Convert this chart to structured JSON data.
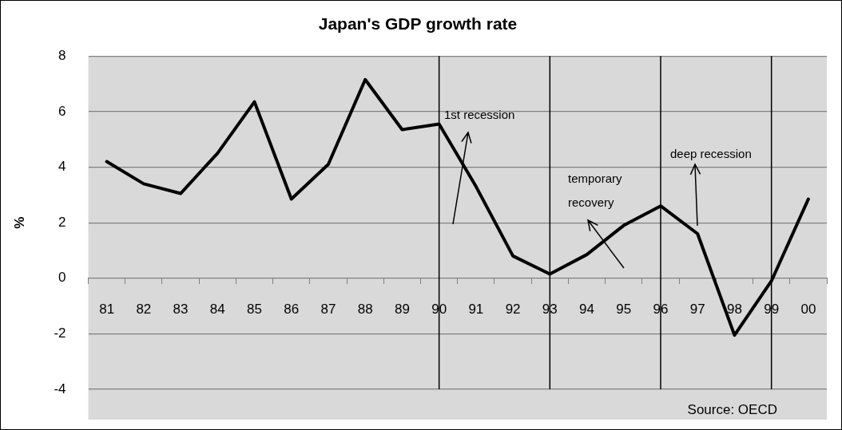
{
  "chart_data": {
    "type": "line",
    "title": "Japan's GDP growth rate",
    "ylabel": "%",
    "categories": [
      "81",
      "82",
      "83",
      "84",
      "85",
      "86",
      "87",
      "88",
      "89",
      "90",
      "91",
      "92",
      "93",
      "94",
      "95",
      "96",
      "97",
      "98",
      "99",
      "00"
    ],
    "series": [
      {
        "color": "#000000",
        "values": [
          4.2,
          3.4,
          3.05,
          4.5,
          6.35,
          2.85,
          4.1,
          7.15,
          5.35,
          5.55,
          3.3,
          0.8,
          0.15,
          0.85,
          1.9,
          2.6,
          1.6,
          -2.05,
          -0.1,
          2.85
        ]
      }
    ],
    "ylim": [
      -4,
      8
    ],
    "yticks": [
      -4,
      -2,
      0,
      2,
      4,
      6,
      8
    ],
    "grid": "y",
    "legend": false,
    "marker": "none",
    "line_style": "solid",
    "ref_lines": [
      {
        "axis": "x",
        "value": "90",
        "color": "#000000"
      },
      {
        "axis": "x",
        "value": "93",
        "color": "#000000"
      },
      {
        "axis": "x",
        "value": "96",
        "color": "#000000"
      },
      {
        "axis": "x",
        "value": "99",
        "color": "#000000"
      }
    ],
    "annotations": [
      "1st recession",
      "temporary recovery",
      "deep recession",
      "Source: OECD"
    ]
  }
}
